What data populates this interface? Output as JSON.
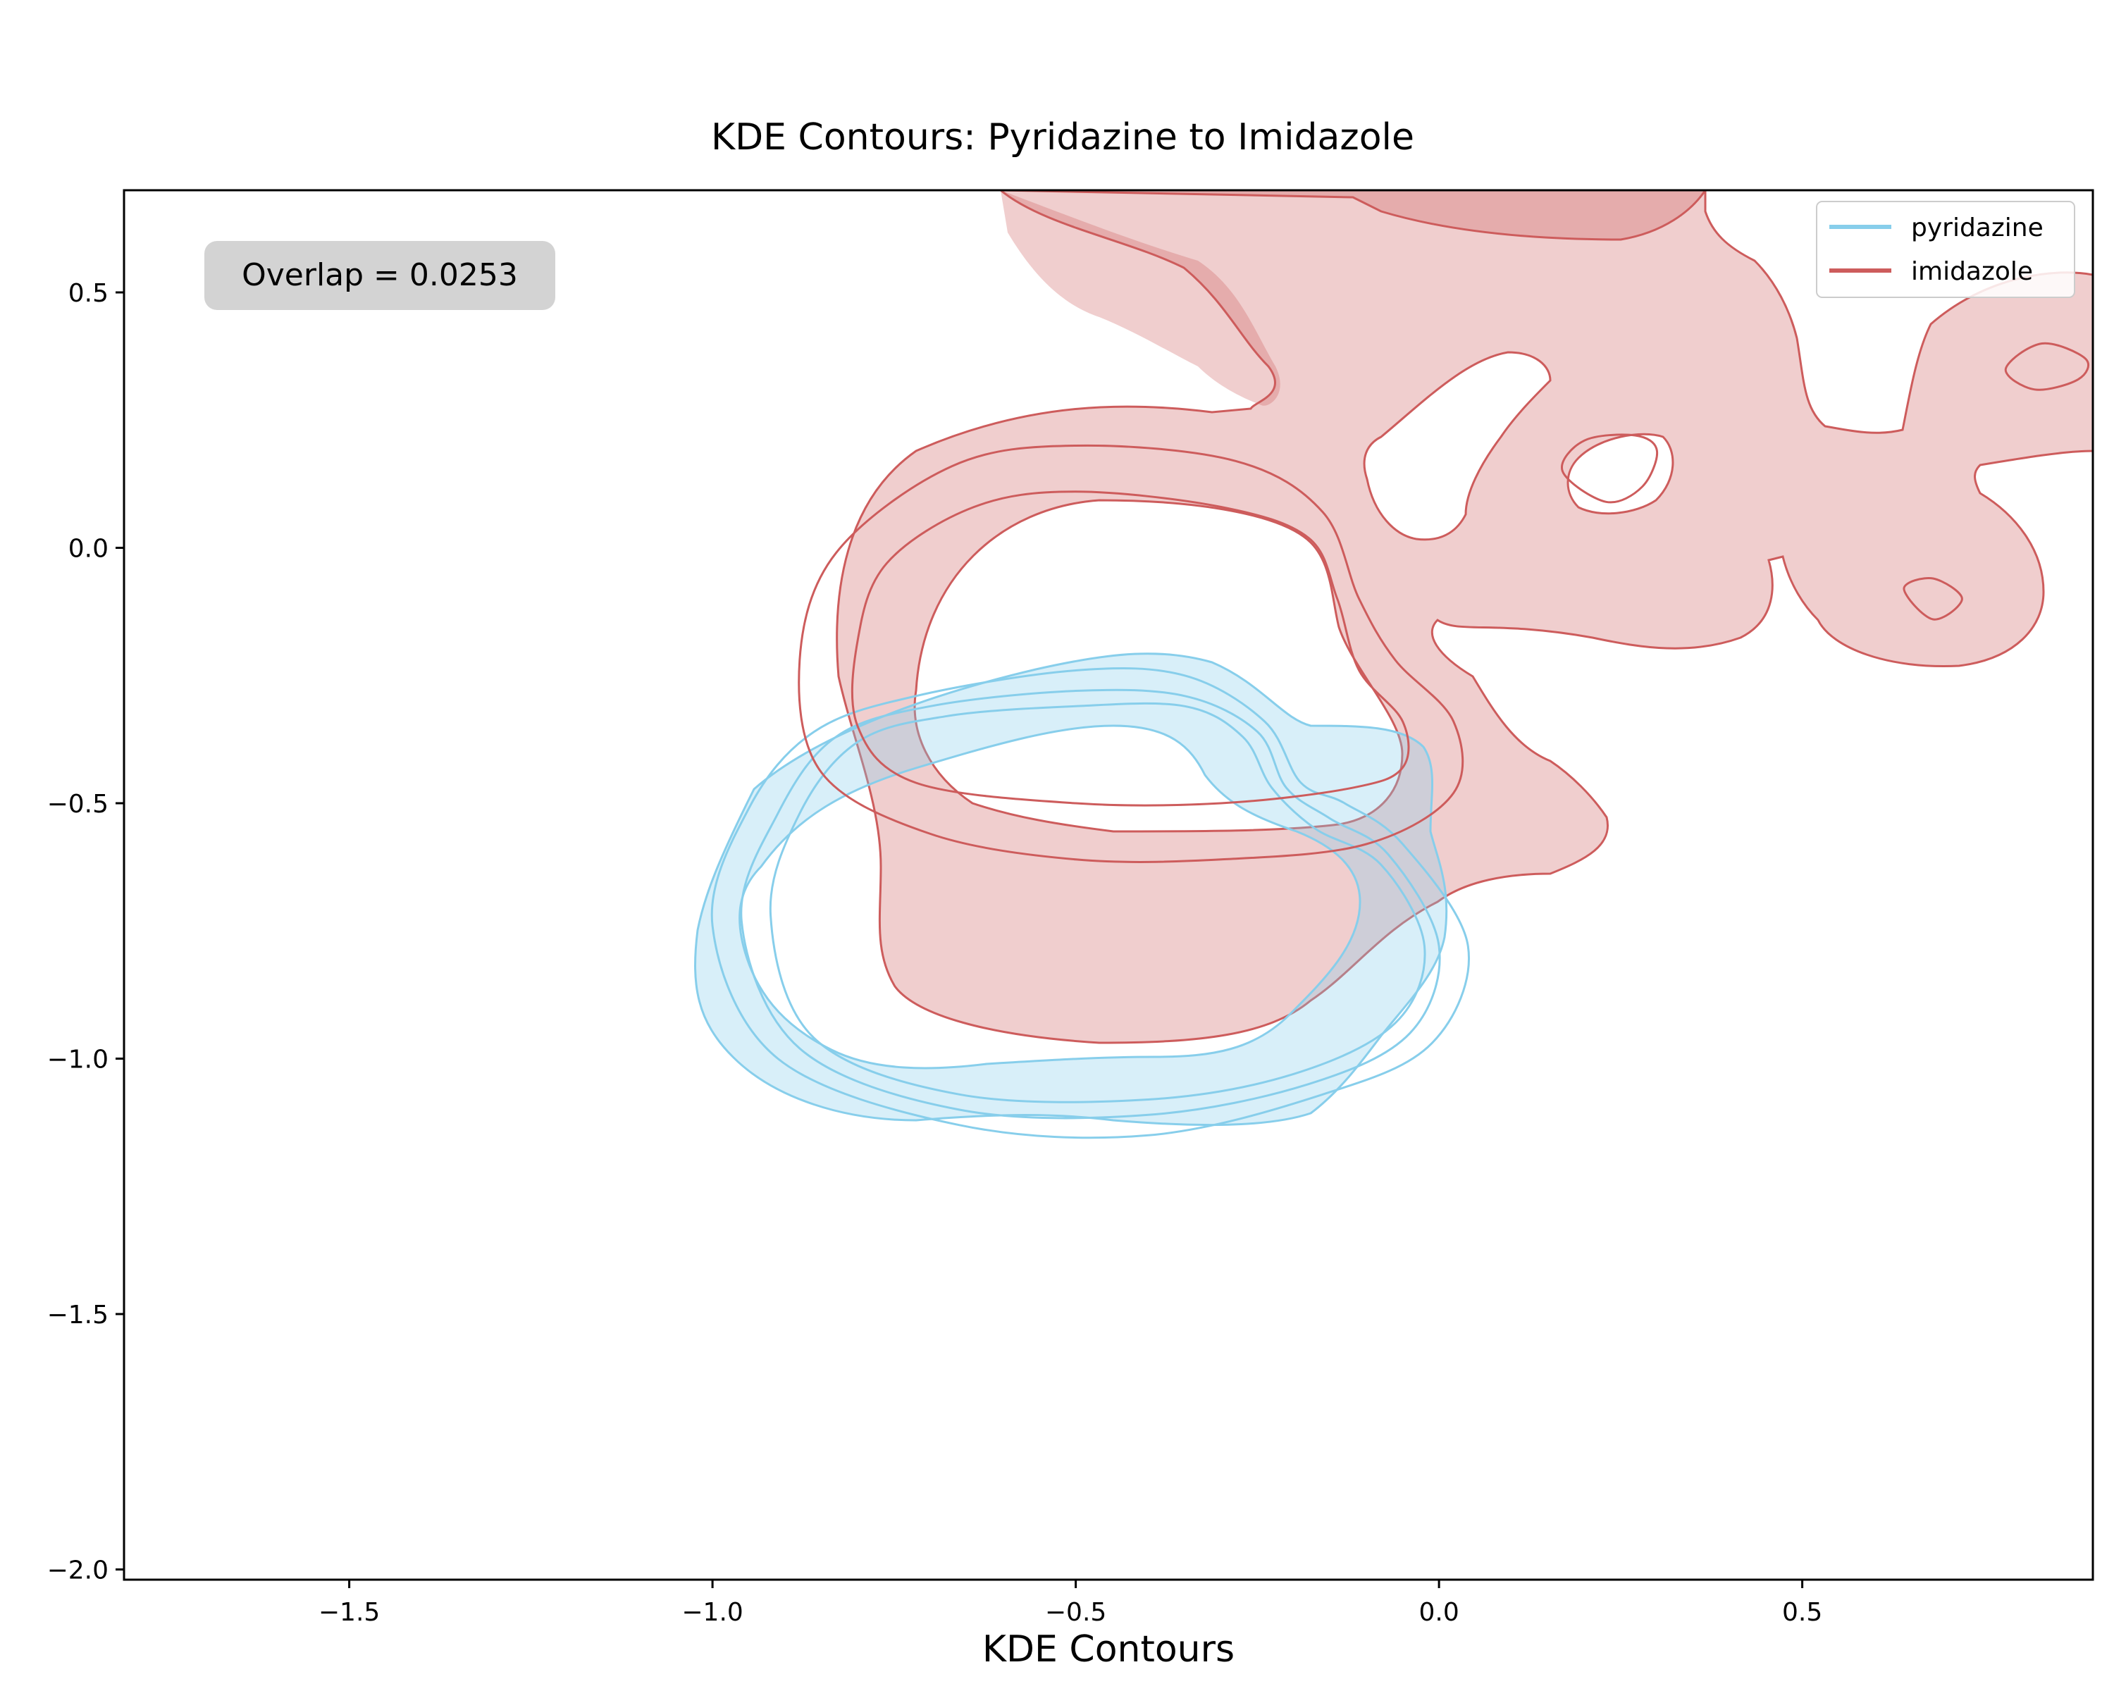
{
  "chart_data": {
    "type": "contour",
    "title": "KDE Contours: Pyridazine to Imidazole",
    "xlabel": "KDE Contours",
    "ylabel": "",
    "xlim": [
      -1.81,
      0.9
    ],
    "ylim": [
      -2.02,
      0.7
    ],
    "xticks": [
      -1.5,
      -1.0,
      -0.5,
      0.0,
      0.5
    ],
    "xtick_labels": [
      "−1.5",
      "−1.0",
      "−0.5",
      "0.0",
      "0.5"
    ],
    "yticks": [
      0.5,
      0.0,
      -0.5,
      -1.0,
      -1.5,
      -2.0
    ],
    "ytick_labels": [
      "0.5",
      "0.0",
      "−0.5",
      "−1.0",
      "−1.5",
      "−2.0"
    ],
    "grid": false,
    "legend_position": "top-right",
    "annotation": "Overlap = 0.0253",
    "series": [
      {
        "name": "pyridazine",
        "color": "#87CEEB",
        "levels": [
          [
            [
              -0.23,
              -0.47
            ],
            [
              -0.27,
              -0.37
            ],
            [
              -0.35,
              -0.31
            ],
            [
              -0.5,
              -0.31
            ],
            [
              -0.68,
              -0.33
            ],
            [
              -0.8,
              -0.38
            ],
            [
              -0.88,
              -0.52
            ],
            [
              -0.92,
              -0.72
            ],
            [
              -0.86,
              -0.96
            ],
            [
              -0.66,
              -1.07
            ],
            [
              -0.4,
              -1.08
            ],
            [
              -0.2,
              -1.03
            ],
            [
              -0.06,
              -0.93
            ],
            [
              -0.02,
              -0.78
            ],
            [
              -0.08,
              -0.62
            ],
            [
              -0.17,
              -0.55
            ],
            [
              -0.23,
              -0.47
            ]
          ],
          [
            [
              -0.21,
              -0.47
            ],
            [
              -0.25,
              -0.36
            ],
            [
              -0.35,
              -0.29
            ],
            [
              -0.5,
              -0.28
            ],
            [
              -0.7,
              -0.31
            ],
            [
              -0.83,
              -0.37
            ],
            [
              -0.91,
              -0.52
            ],
            [
              -0.96,
              -0.73
            ],
            [
              -0.88,
              -0.98
            ],
            [
              -0.66,
              -1.1
            ],
            [
              -0.4,
              -1.11
            ],
            [
              -0.18,
              -1.05
            ],
            [
              -0.04,
              -0.95
            ],
            [
              0.0,
              -0.78
            ],
            [
              -0.07,
              -0.6
            ],
            [
              -0.15,
              -0.53
            ],
            [
              -0.21,
              -0.47
            ]
          ],
          [
            [
              -0.19,
              -0.46
            ],
            [
              -0.24,
              -0.34
            ],
            [
              -0.35,
              -0.25
            ],
            [
              -0.5,
              -0.24
            ],
            [
              -0.72,
              -0.29
            ],
            [
              -0.86,
              -0.36
            ],
            [
              -0.95,
              -0.51
            ],
            [
              -1.0,
              -0.74
            ],
            [
              -0.91,
              -1.0
            ],
            [
              -0.66,
              -1.13
            ],
            [
              -0.4,
              -1.15
            ],
            [
              -0.16,
              -1.07
            ],
            [
              -0.01,
              -0.97
            ],
            [
              0.04,
              -0.78
            ],
            [
              -0.05,
              -0.58
            ],
            [
              -0.13,
              -0.5
            ],
            [
              -0.19,
              -0.46
            ]
          ]
        ]
      },
      {
        "name": "imidazole",
        "color": "#CD5C5C",
        "levels": [
          [
            [
              -0.8,
              -0.18
            ],
            [
              -0.76,
              -0.03
            ],
            [
              -0.64,
              0.08
            ],
            [
              -0.5,
              0.11
            ],
            [
              -0.3,
              0.08
            ],
            [
              -0.18,
              0.02
            ],
            [
              -0.14,
              -0.1
            ],
            [
              -0.11,
              -0.24
            ],
            [
              -0.05,
              -0.34
            ],
            [
              -0.05,
              -0.43
            ],
            [
              -0.12,
              -0.47
            ],
            [
              -0.3,
              -0.5
            ],
            [
              -0.5,
              -0.5
            ],
            [
              -0.72,
              -0.46
            ],
            [
              -0.8,
              -0.35
            ],
            [
              -0.8,
              -0.18
            ]
          ],
          [
            [
              -0.88,
              -0.22
            ],
            [
              -0.83,
              -0.01
            ],
            [
              -0.67,
              0.16
            ],
            [
              -0.5,
              0.2
            ],
            [
              -0.28,
              0.17
            ],
            [
              -0.16,
              0.07
            ],
            [
              -0.11,
              -0.1
            ],
            [
              -0.06,
              -0.22
            ],
            [
              0.02,
              -0.34
            ],
            [
              0.02,
              -0.48
            ],
            [
              -0.1,
              -0.58
            ],
            [
              -0.3,
              -0.61
            ],
            [
              -0.5,
              -0.61
            ],
            [
              -0.7,
              -0.56
            ],
            [
              -0.85,
              -0.44
            ],
            [
              -0.88,
              -0.22
            ]
          ],
          [
            [
              0.17,
              0.15
            ],
            [
              0.23,
              0.09
            ],
            [
              0.28,
              0.12
            ],
            [
              0.3,
              0.19
            ],
            [
              0.27,
              0.22
            ],
            [
              0.2,
              0.21
            ],
            [
              0.17,
              0.15
            ]
          ],
          [
            [
              0.64,
              -0.08
            ],
            [
              0.68,
              -0.14
            ],
            [
              0.72,
              -0.1
            ],
            [
              0.68,
              -0.06
            ],
            [
              0.64,
              -0.08
            ]
          ],
          [
            [
              0.78,
              0.35
            ],
            [
              0.82,
              0.31
            ],
            [
              0.88,
              0.33
            ],
            [
              0.89,
              0.37
            ],
            [
              0.83,
              0.4
            ],
            [
              0.78,
              0.35
            ]
          ]
        ]
      }
    ]
  }
}
